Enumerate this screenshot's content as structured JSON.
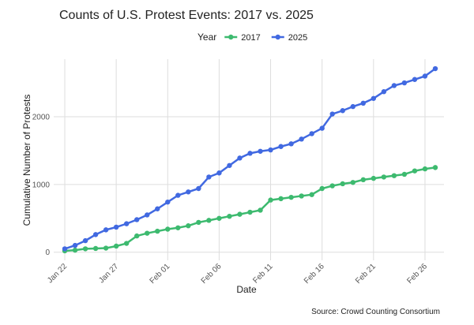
{
  "chart_data": {
    "type": "line",
    "title": "Counts of U.S. Protest Events: 2017 vs. 2025",
    "legend_title": "Year",
    "x_label": "Date",
    "y_label": "Cumulative Number of Protests",
    "caption": "Source: Crowd Counting Consortium",
    "categories": [
      "Jan 22",
      null,
      null,
      null,
      null,
      "Jan 27",
      null,
      null,
      null,
      null,
      "Feb 01",
      null,
      null,
      null,
      null,
      "Feb 06",
      null,
      null,
      null,
      null,
      "Feb 11",
      null,
      null,
      null,
      null,
      "Feb 16",
      null,
      null,
      null,
      null,
      "Feb 21",
      null,
      null,
      null,
      null,
      "Feb 26",
      null
    ],
    "series": [
      {
        "name": "2017",
        "color": "#3dba6f",
        "values": [
          20,
          30,
          50,
          55,
          60,
          90,
          130,
          240,
          280,
          310,
          340,
          360,
          390,
          440,
          470,
          500,
          530,
          560,
          590,
          620,
          770,
          790,
          810,
          830,
          850,
          940,
          980,
          1010,
          1030,
          1070,
          1090,
          1110,
          1130,
          1150,
          1200,
          1230,
          1250
        ]
      },
      {
        "name": "2025",
        "color": "#4169e1",
        "values": [
          50,
          100,
          170,
          260,
          330,
          370,
          420,
          480,
          550,
          640,
          740,
          840,
          890,
          940,
          1110,
          1170,
          1280,
          1390,
          1460,
          1490,
          1510,
          1560,
          1600,
          1670,
          1750,
          1830,
          2040,
          2090,
          2150,
          2200,
          2270,
          2370,
          2460,
          2500,
          2550,
          2600,
          2710
        ]
      }
    ],
    "ylim": [
      -120,
      2850
    ],
    "yticks": [
      0,
      1000,
      2000
    ],
    "grid": true,
    "legend_position": "top"
  }
}
